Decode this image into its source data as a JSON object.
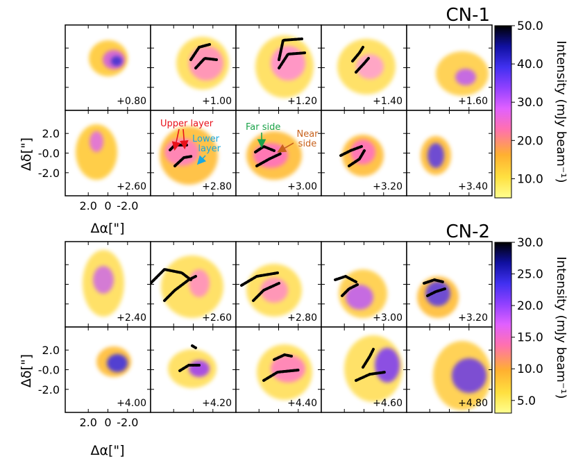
{
  "chart_data": [
    {
      "type": "heatmap",
      "title": "CN-1",
      "panel_labels": [
        "+0.80",
        "+1.00",
        "+1.20",
        "+1.40",
        "+1.60",
        "+2.60",
        "+2.80",
        "+3.00",
        "+3.20",
        "+3.40"
      ],
      "xlabel": "Δα[\"]",
      "ylabel": "Δδ[\"]",
      "xticks": [
        "2.0",
        "0",
        "-2.0"
      ],
      "yticks": [
        "2.0",
        "-0.0",
        "-2.0"
      ],
      "xlim": [
        3.0,
        -3.0
      ],
      "ylim": [
        -3.0,
        3.0
      ],
      "colorbar": {
        "label": "Intensity (mJy beam⁻¹)",
        "range": [
          5.0,
          50.0
        ],
        "ticks": [
          "50.0",
          "40.0",
          "30.0",
          "20.0",
          "10.0"
        ],
        "tick_values": [
          50,
          40,
          30,
          20,
          10
        ],
        "colormap": "gnuplot2_r"
      },
      "annotations": [
        {
          "text": "Upper layer",
          "color": "#e8101a"
        },
        {
          "text": "Lower\nlayer",
          "color": "#1aa7e0"
        },
        {
          "text": "Far side",
          "color": "#1aa34a"
        },
        {
          "text": "Near\nside",
          "color": "#c8621d"
        }
      ]
    },
    {
      "type": "heatmap",
      "title": "CN-2",
      "panel_labels": [
        "+2.40",
        "+2.60",
        "+2.80",
        "+3.00",
        "+3.20",
        "+4.00",
        "+4.20",
        "+4.40",
        "+4.60",
        "+4.80"
      ],
      "xlabel": "Δα[\"]",
      "ylabel": "Δδ[\"]",
      "xticks": [
        "2.0",
        "0",
        "-2.0"
      ],
      "yticks": [
        "2.0",
        "-0.0",
        "-2.0"
      ],
      "xlim": [
        3.0,
        -3.0
      ],
      "ylim": [
        -3.0,
        3.0
      ],
      "colorbar": {
        "label": "Intensity (mJy beam⁻¹)",
        "range": [
          3.0,
          30.0
        ],
        "ticks": [
          "30.0",
          "25.0",
          "20.0",
          "15.0",
          "10.0",
          "5.0"
        ],
        "tick_values": [
          30,
          25,
          20,
          15,
          10,
          5
        ],
        "colormap": "gnuplot2_r"
      }
    }
  ],
  "colors": {
    "cmap_stops": [
      "#ffff90",
      "#ffe040",
      "#ffb030",
      "#ff70b0",
      "#e060ff",
      "#9040ff",
      "#4030f0",
      "#1010a0",
      "#000000"
    ]
  }
}
